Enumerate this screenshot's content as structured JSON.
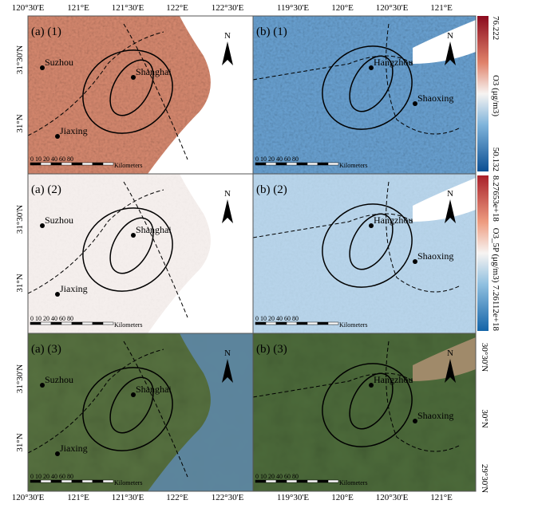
{
  "top_axis": {
    "left": [
      "120°30'E",
      "121°E",
      "121°30'E",
      "122°E",
      "122°30'E"
    ],
    "right": [
      "119°30'E",
      "120°E",
      "120°30'E",
      "121°E"
    ]
  },
  "bottom_axis": {
    "left": [
      "120°30'E",
      "121°E",
      "121°30'E",
      "122°E",
      "122°30'E"
    ],
    "right": [
      "119°30'E",
      "120°E",
      "120°30'E",
      "121°E"
    ]
  },
  "left_axis": [
    [
      "31°30'N",
      "31°N"
    ],
    [
      "31°30'N",
      "31°N"
    ],
    [
      "31°30'N",
      "31°N"
    ]
  ],
  "right_axis": [
    "30°30'N",
    "30°N",
    "29°30'N"
  ],
  "colorbars": [
    {
      "max": "76.222",
      "title": "O3  (μg/m3)",
      "min": "50.132"
    },
    {
      "max": "8.27653e+18",
      "title": "O3_5P  (μg/m3)",
      "min": "7.26112e+18"
    }
  ],
  "panels": [
    {
      "label": "(a)  (1)",
      "cities": [
        "Suzhou",
        "Shanghai",
        "Jiaxing"
      ]
    },
    {
      "label": "(b)  (1)",
      "cities": [
        "Hangzhou",
        "Shaoxing"
      ]
    },
    {
      "label": "(a)  (2)",
      "cities": [
        "Suzhou",
        "Shanghai",
        "Jiaxing"
      ]
    },
    {
      "label": "(b)  (2)",
      "cities": [
        "Hangzhou",
        "Shaoxing"
      ]
    },
    {
      "label": "(a)  (3)",
      "cities": [
        "Suzhou",
        "Shanghai",
        "Jiaxing"
      ]
    },
    {
      "label": "(b)  (3)",
      "cities": [
        "Hangzhou",
        "Shaoxing"
      ]
    }
  ],
  "north": "N",
  "scale_bar": {
    "ticks": "0  10 20     40      60      80",
    "unit": "Kilometers"
  }
}
